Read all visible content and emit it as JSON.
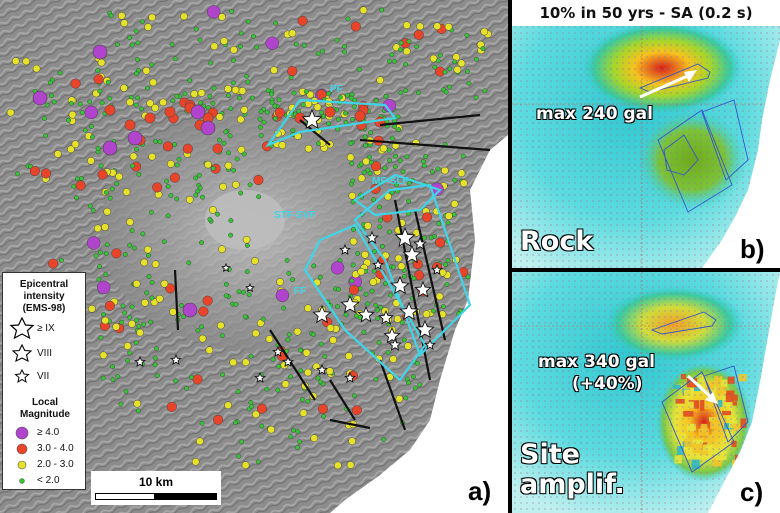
{
  "panel_a": {
    "letter": "a)",
    "fault_labels": {
      "pf": "PF",
      "mf_slf": "MF-SLF",
      "stf_svf": "STF-SVF",
      "ff": "FF"
    },
    "legend": {
      "intensity_title_1": "Epicentral",
      "intensity_title_2": "intensity",
      "intensity_title_3": "(EMS-98)",
      "intensity_items": [
        "≥ IX",
        "VIII",
        "VII"
      ],
      "magnitude_title_1": "Local",
      "magnitude_title_2": "Magnitude",
      "magnitude_items": [
        "≥ 4.0",
        "3.0 - 4.0",
        "2.0 - 3.0",
        "< 2.0"
      ],
      "magnitude_colors": [
        "#b044cc",
        "#e8442a",
        "#e6e22a",
        "#36c436"
      ]
    },
    "scale_label": "10 km"
  },
  "panel_b": {
    "title": "10% in 50 yrs - SA (0.2 s)",
    "annotation": "max 240 gal",
    "condition": "Rock",
    "letter": "b)"
  },
  "panel_c": {
    "annotation_1": "max 340 gal",
    "annotation_2": "(+40%)",
    "condition_1": "Site",
    "condition_2": "amplif.",
    "letter": "c)"
  }
}
